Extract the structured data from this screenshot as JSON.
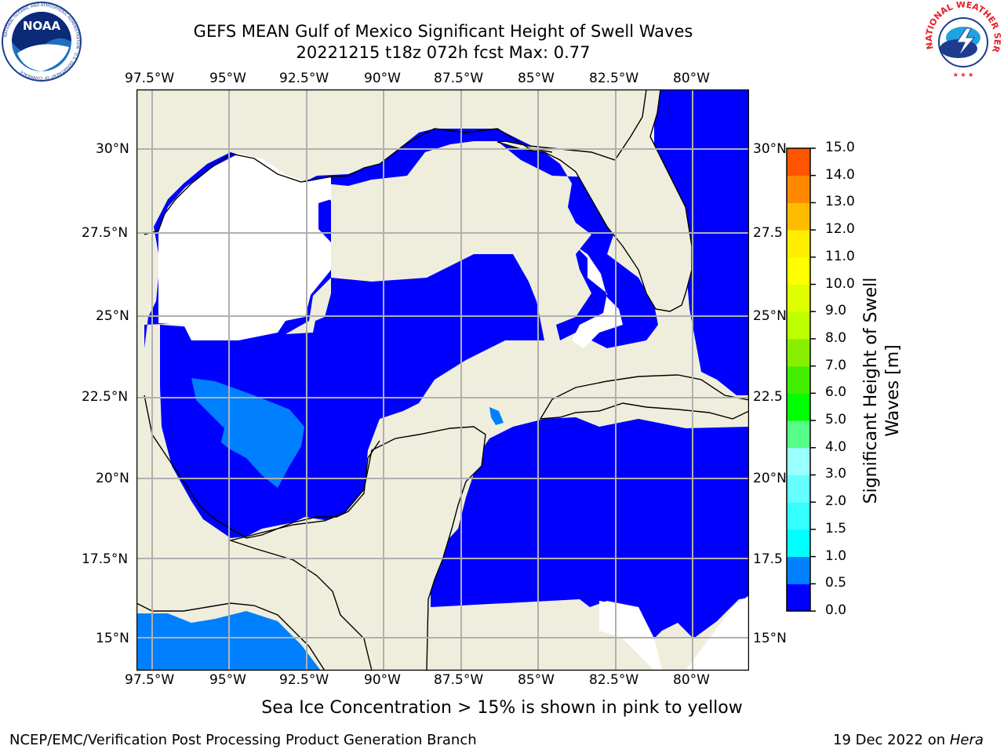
{
  "header": {
    "title_line1": "GEFS MEAN Gulf of Mexico Significant Height of Swell Waves",
    "title_line2": "20221215 t18z 072h fcst   Max: 0.77"
  },
  "logos": {
    "noaa": "NOAA",
    "noaa_ring": "NATIONAL OCEANIC AND ATMOSPHERIC ADMINISTRATION · U.S. DEPARTMENT OF COMMERCE",
    "nws_ring": "NATIONAL WEATHER SERVICE"
  },
  "map": {
    "lon_labels": [
      "97.5°W",
      "95°W",
      "92.5°W",
      "90°W",
      "87.5°W",
      "85°W",
      "82.5°W",
      "80°W"
    ],
    "lat_labels_left": [
      "30°N",
      "27.5°N",
      "25°N",
      "22.5°N",
      "20°N",
      "17.5°N",
      "15°N"
    ],
    "lat_labels_right": [
      "30°N",
      "27.5",
      "25°N",
      "22.5",
      "20°N",
      "17.5",
      "15°N"
    ],
    "colors": {
      "land": "#efeedd",
      "sea_low": "#0000ff",
      "sea_mid": "#0080ff",
      "missing": "#ffffff",
      "grid": "#b0b0b0"
    }
  },
  "colorbar": {
    "ticks": [
      "15.0",
      "14.0",
      "13.0",
      "12.0",
      "11.0",
      "10.0",
      "9.0",
      "8.0",
      "7.0",
      "6.0",
      "5.0",
      "4.0",
      "3.0",
      "2.0",
      "1.5",
      "1.0",
      "0.5",
      "0.0"
    ],
    "label_line1": "Significant Height of Swell",
    "label_line2": "Waves [m]",
    "colors": [
      "#0000ff",
      "#0080ff",
      "#00ffff",
      "#33ffff",
      "#66ffff",
      "#99ffff",
      "#55ff88",
      "#00ff00",
      "#44ee00",
      "#88ee00",
      "#bbff00",
      "#ddff00",
      "#ffff00",
      "#ffee00",
      "#ffbb00",
      "#ff8800",
      "#ff5500",
      "#ff2200",
      "#ff0000"
    ]
  },
  "note": "Sea Ice Concentration > 15% is shown in pink to yellow",
  "footer": {
    "left": "NCEP/EMC/Verification Post Processing Product Generation Branch",
    "date": "19 Dec 2022 on ",
    "host": "Hera"
  }
}
